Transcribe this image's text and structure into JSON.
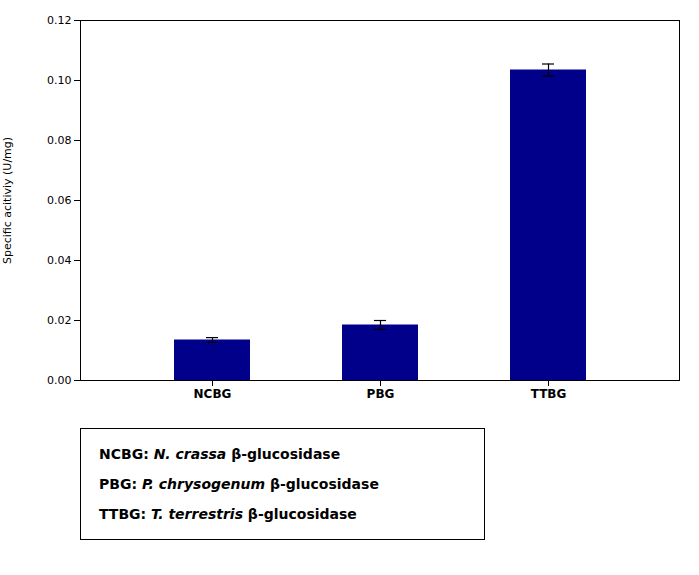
{
  "chart_data": {
    "type": "bar",
    "categories": [
      "NCBG",
      "PBG",
      "TTBG"
    ],
    "values": [
      0.0135,
      0.0185,
      0.1035
    ],
    "errors": [
      0.0008,
      0.0015,
      0.002
    ],
    "color": "#00008B",
    "ylabel": "Specific acitiviy (U/mg)",
    "ylim": [
      0,
      0.12
    ],
    "yticks": [
      {
        "value": 0,
        "label": "0.00"
      },
      0.02,
      0.04,
      0.06,
      0.08,
      {
        "value": 0.1,
        "label": "0.10"
      },
      0.12
    ],
    "grid": false,
    "annotations": [
      "NCBG: N. crassa β-glucosidase",
      "PBG: P. chrysogenum β-glucosidase",
      "TTBG: T. terrestris β-glucosidase"
    ]
  }
}
